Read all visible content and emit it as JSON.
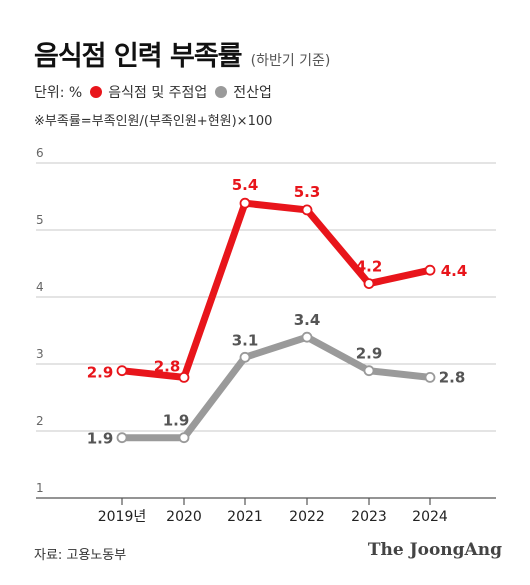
{
  "header": {
    "title": "음식점 인력 부족률",
    "subtitle": "(하반기 기준)"
  },
  "legend": {
    "unit": "단위: %",
    "items": [
      {
        "label": "음식점 및 주점업",
        "color": "#e8151b"
      },
      {
        "label": "전산업",
        "color": "#9a9a9a"
      }
    ]
  },
  "formula": "※부족률=부족인원/(부족인원+현원)×100",
  "chart_data": {
    "type": "line",
    "categories": [
      "2019년",
      "2020",
      "2021",
      "2022",
      "2023",
      "2024"
    ],
    "yticks": [
      "1",
      "2",
      "3",
      "4",
      "5",
      "6"
    ],
    "ylim": [
      1,
      6
    ],
    "grid": true,
    "series": [
      {
        "name": "음식점 및 주점업",
        "color": "#e8151b",
        "values": [
          2.9,
          2.8,
          5.4,
          5.3,
          4.2,
          4.4
        ],
        "labels": [
          "2.9",
          "2.8",
          "5.4",
          "5.3",
          "4.2",
          "4.4"
        ]
      },
      {
        "name": "전산업",
        "color": "#9a9a9a",
        "values": [
          1.9,
          1.9,
          3.1,
          3.4,
          2.9,
          2.8
        ],
        "labels": [
          "1.9",
          "1.9",
          "3.1",
          "3.4",
          "2.9",
          "2.8"
        ]
      }
    ]
  },
  "footer": {
    "source": "자료: 고용노동부",
    "brand": "The JoongAng"
  }
}
